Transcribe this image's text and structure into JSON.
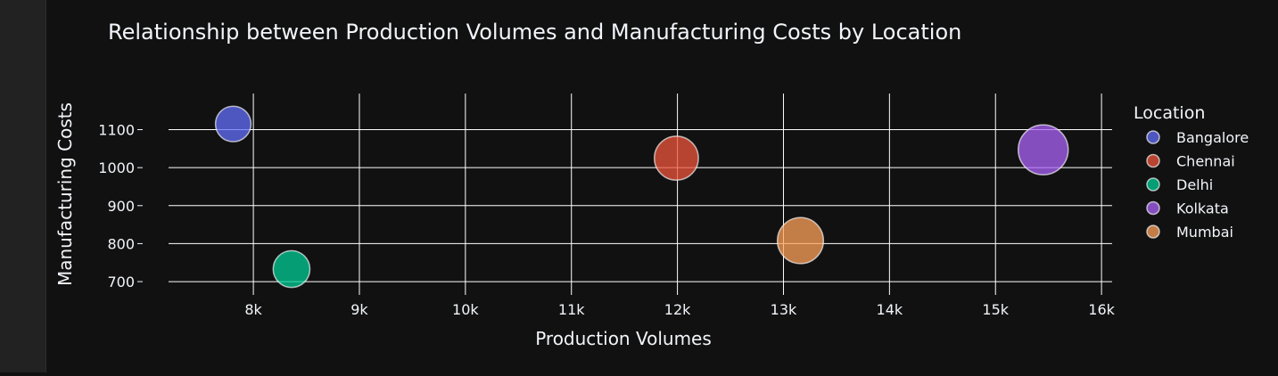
{
  "chart_data": {
    "type": "scatter",
    "title": "Relationship between Production Volumes and Manufacturing Costs by Location",
    "xlabel": "Production Volumes",
    "ylabel": "Manufacturing Costs",
    "xlim": [
      7200,
      16100
    ],
    "ylim": [
      665,
      1195
    ],
    "x_ticks": [
      8000,
      9000,
      10000,
      11000,
      12000,
      13000,
      14000,
      15000,
      16000
    ],
    "x_tick_labels": [
      "8k",
      "9k",
      "10k",
      "11k",
      "12k",
      "13k",
      "14k",
      "15k",
      "16k"
    ],
    "y_ticks": [
      700,
      800,
      900,
      1000,
      1100
    ],
    "y_tick_labels": [
      "700",
      "800",
      "900",
      "1000",
      "1100"
    ],
    "grid": true,
    "legend_title": "Location",
    "legend_position": "right",
    "series": [
      {
        "name": "Bangalore",
        "color": "#636efa",
        "x": [
          7810
        ],
        "y": [
          1115
        ],
        "size": [
          7810
        ]
      },
      {
        "name": "Chennai",
        "color": "#ef553b",
        "x": [
          11990
        ],
        "y": [
          1025
        ],
        "size": [
          11990
        ]
      },
      {
        "name": "Delhi",
        "color": "#00cc96",
        "x": [
          8360
        ],
        "y": [
          733
        ],
        "size": [
          8360
        ]
      },
      {
        "name": "Kolkata",
        "color": "#ab63fa",
        "x": [
          15450
        ],
        "y": [
          1047
        ],
        "size": [
          15450
        ]
      },
      {
        "name": "Mumbai",
        "color": "#ffa15a",
        "x": [
          13160
        ],
        "y": [
          808
        ],
        "size": [
          13160
        ]
      }
    ]
  }
}
